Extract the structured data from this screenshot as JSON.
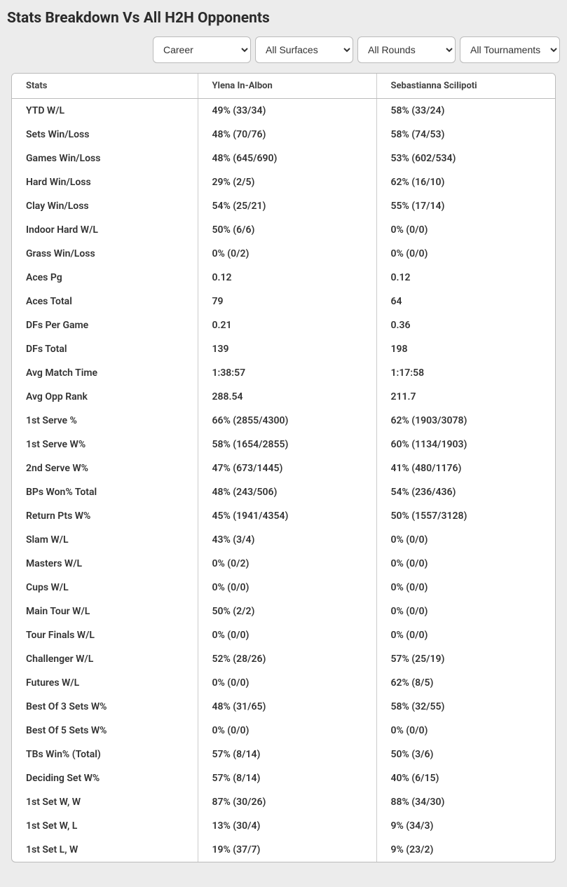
{
  "title": "Stats Breakdown Vs All H2H Opponents",
  "filters": {
    "period": "Career",
    "surface": "All Surfaces",
    "round": "All Rounds",
    "tournament": "All Tournaments"
  },
  "columns": {
    "stats": "Stats",
    "player1": "Ylena In-Albon",
    "player2": "Sebastianna Scilipoti"
  },
  "rows": [
    {
      "stat": "YTD W/L",
      "p1": "49% (33/34)",
      "p2": "58% (33/24)"
    },
    {
      "stat": "Sets Win/Loss",
      "p1": "48% (70/76)",
      "p2": "58% (74/53)"
    },
    {
      "stat": "Games Win/Loss",
      "p1": "48% (645/690)",
      "p2": "53% (602/534)"
    },
    {
      "stat": "Hard Win/Loss",
      "p1": "29% (2/5)",
      "p2": "62% (16/10)"
    },
    {
      "stat": "Clay Win/Loss",
      "p1": "54% (25/21)",
      "p2": "55% (17/14)"
    },
    {
      "stat": "Indoor Hard W/L",
      "p1": "50% (6/6)",
      "p2": "0% (0/0)"
    },
    {
      "stat": "Grass Win/Loss",
      "p1": "0% (0/2)",
      "p2": "0% (0/0)"
    },
    {
      "stat": "Aces Pg",
      "p1": "0.12",
      "p2": "0.12"
    },
    {
      "stat": "Aces Total",
      "p1": "79",
      "p2": "64"
    },
    {
      "stat": "DFs Per Game",
      "p1": "0.21",
      "p2": "0.36"
    },
    {
      "stat": "DFs Total",
      "p1": "139",
      "p2": "198"
    },
    {
      "stat": "Avg Match Time",
      "p1": "1:38:57",
      "p2": "1:17:58"
    },
    {
      "stat": "Avg Opp Rank",
      "p1": "288.54",
      "p2": "211.7"
    },
    {
      "stat": "1st Serve %",
      "p1": "66% (2855/4300)",
      "p2": "62% (1903/3078)"
    },
    {
      "stat": "1st Serve W%",
      "p1": "58% (1654/2855)",
      "p2": "60% (1134/1903)"
    },
    {
      "stat": "2nd Serve W%",
      "p1": "47% (673/1445)",
      "p2": "41% (480/1176)"
    },
    {
      "stat": "BPs Won% Total",
      "p1": "48% (243/506)",
      "p2": "54% (236/436)"
    },
    {
      "stat": "Return Pts W%",
      "p1": "45% (1941/4354)",
      "p2": "50% (1557/3128)"
    },
    {
      "stat": "Slam W/L",
      "p1": "43% (3/4)",
      "p2": "0% (0/0)"
    },
    {
      "stat": "Masters W/L",
      "p1": "0% (0/2)",
      "p2": "0% (0/0)"
    },
    {
      "stat": "Cups W/L",
      "p1": "0% (0/0)",
      "p2": "0% (0/0)"
    },
    {
      "stat": "Main Tour W/L",
      "p1": "50% (2/2)",
      "p2": "0% (0/0)"
    },
    {
      "stat": "Tour Finals W/L",
      "p1": "0% (0/0)",
      "p2": "0% (0/0)"
    },
    {
      "stat": "Challenger W/L",
      "p1": "52% (28/26)",
      "p2": "57% (25/19)"
    },
    {
      "stat": "Futures W/L",
      "p1": "0% (0/0)",
      "p2": "62% (8/5)"
    },
    {
      "stat": "Best Of 3 Sets W%",
      "p1": "48% (31/65)",
      "p2": "58% (32/55)"
    },
    {
      "stat": "Best Of 5 Sets W%",
      "p1": "0% (0/0)",
      "p2": "0% (0/0)"
    },
    {
      "stat": "TBs Win% (Total)",
      "p1": "57% (8/14)",
      "p2": "50% (3/6)"
    },
    {
      "stat": "Deciding Set W%",
      "p1": "57% (8/14)",
      "p2": "40% (6/15)"
    },
    {
      "stat": "1st Set W, W",
      "p1": "87% (30/26)",
      "p2": "88% (34/30)"
    },
    {
      "stat": "1st Set W, L",
      "p1": "13% (30/4)",
      "p2": "9% (34/3)"
    },
    {
      "stat": "1st Set L, W",
      "p1": "19% (37/7)",
      "p2": "9% (23/2)"
    }
  ]
}
